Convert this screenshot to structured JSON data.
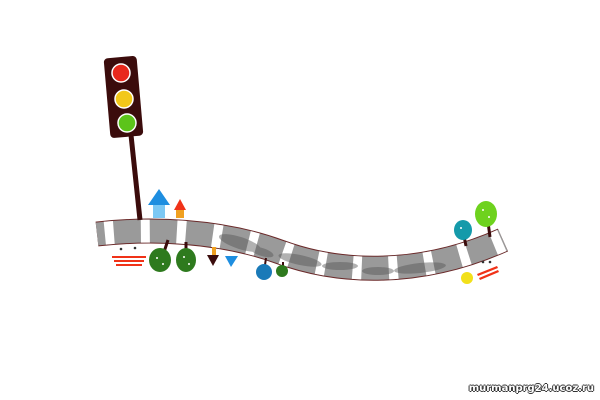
{
  "watermark": "murmanprg24.ucoz.ru",
  "colors": {
    "road": "#9a9a9a",
    "road_stripes": "#ffffff",
    "road_edge": "#6b2a2a",
    "traffic_light_body": "#3b0c0c",
    "light_red": "#e8281c",
    "light_yellow": "#f2c81a",
    "light_green": "#5cc41a",
    "tree_dark": "#2e7a1e",
    "tree_light": "#6ed21e",
    "tree_teal": "#149aaa",
    "tree_blue": "#1a7ab8",
    "house_blue": "#1e8ee0",
    "accent_red": "#f03218"
  }
}
